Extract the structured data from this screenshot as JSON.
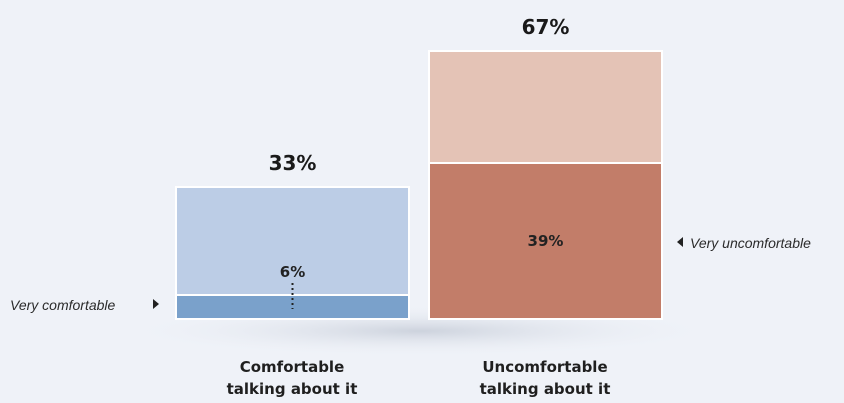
{
  "chart_data": {
    "type": "bar",
    "stacked": true,
    "categories": [
      "Comfortable talking about it",
      "Uncomfortable talking about it"
    ],
    "category_lines": [
      [
        "Comfortable",
        "talking about it"
      ],
      [
        "Uncomfortable",
        "talking about it"
      ]
    ],
    "totals": [
      33,
      67
    ],
    "total_labels": [
      "33%",
      "67%"
    ],
    "strong_values": [
      6,
      39
    ],
    "strong_labels": [
      "6%",
      "39%"
    ],
    "annotations": [
      "Very comfortable",
      "Very uncomfortable"
    ],
    "ylim": [
      0,
      67
    ],
    "colors": {
      "comfortable_total": "#bccde6",
      "comfortable_strong": "#7aa1cb",
      "uncomfortable_total": "#e4c3b6",
      "uncomfortable_strong": "#c27d69",
      "background": "#eff2f8"
    }
  }
}
